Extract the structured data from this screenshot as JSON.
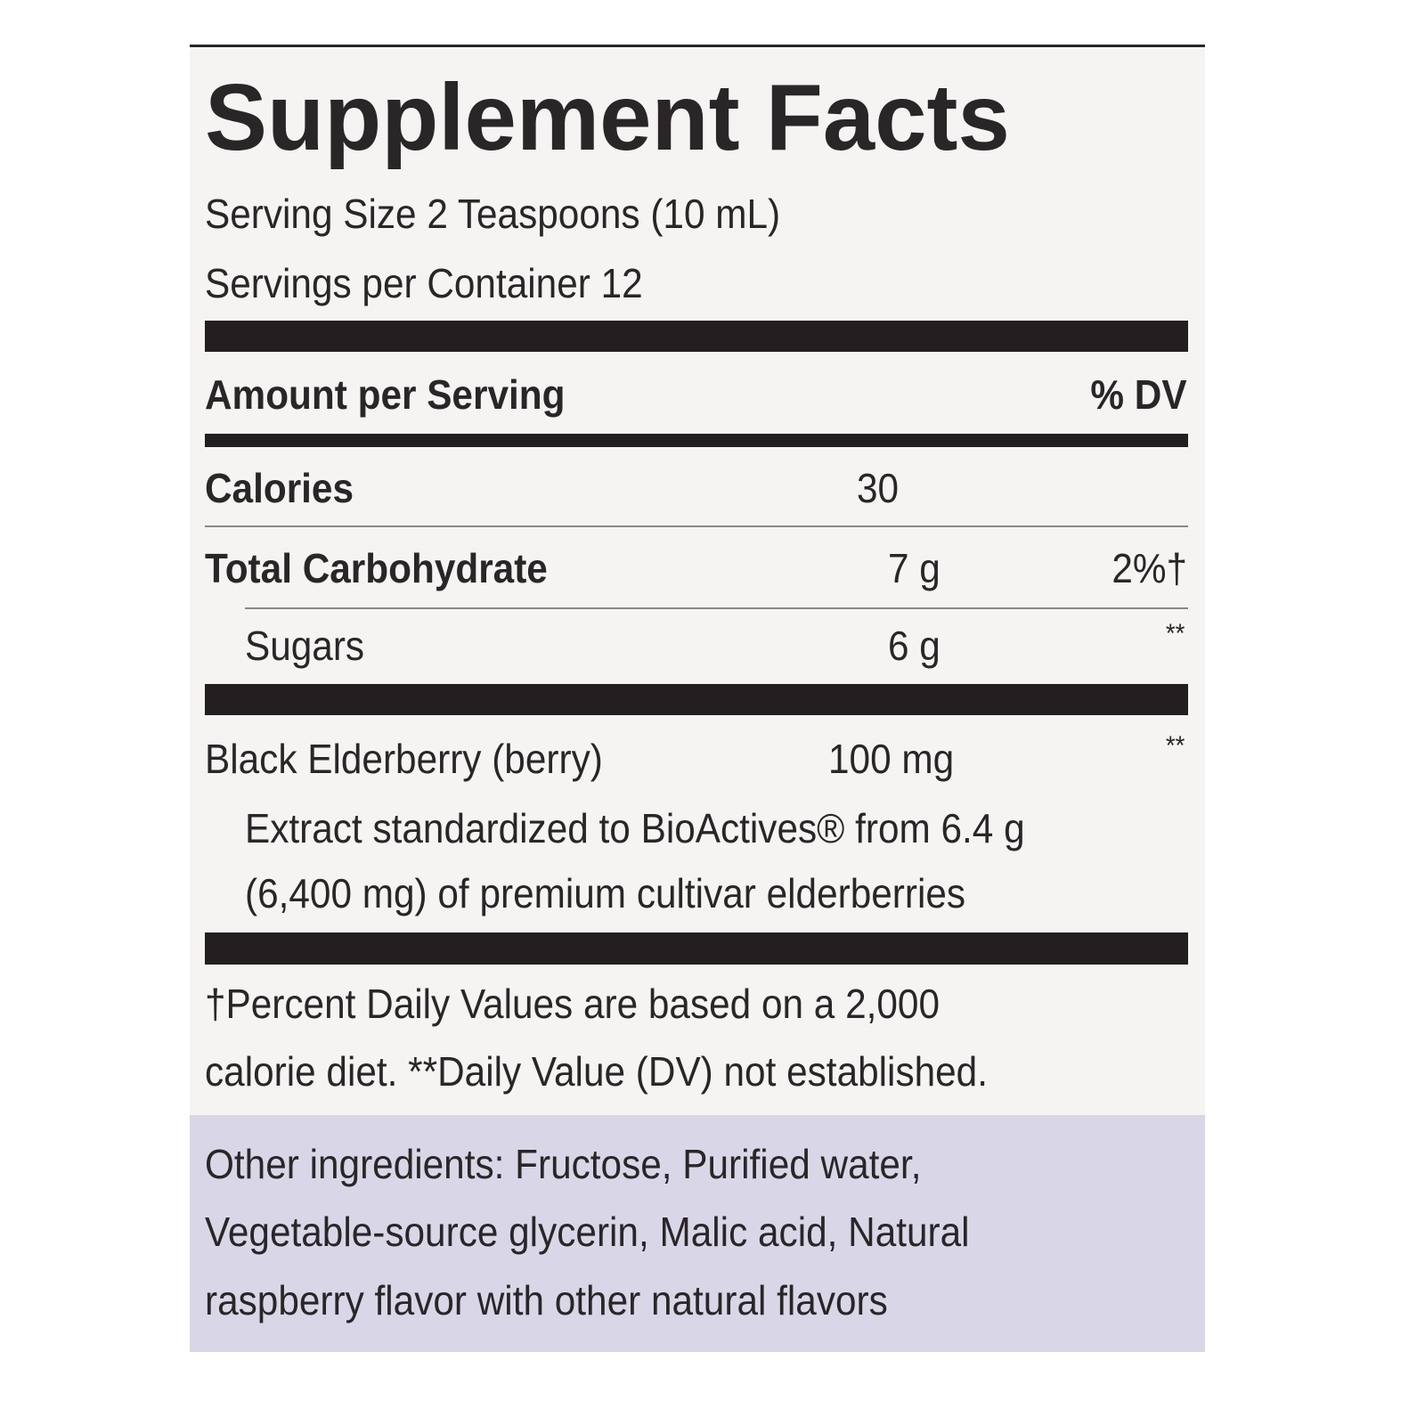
{
  "title": "Supplement Facts",
  "serving_size": "Serving Size 2 Teaspoons (10 mL)",
  "servings_per_container": "Servings per Container 12",
  "header": {
    "left": "Amount per Serving",
    "right": "% DV"
  },
  "rows": [
    {
      "name": "Calories",
      "amount": "30"
    },
    {
      "name": "Total Carbohydrate",
      "amount": "7 g",
      "dv": "2%†"
    },
    {
      "name": "Sugars",
      "amount": "6 g",
      "dv": "**"
    },
    {
      "name": "Black Elderberry (berry)",
      "amount": "100 mg",
      "dv": "**",
      "description": [
        "Extract standardized to BioActives® from 6.4 g",
        "(6,400 mg) of premium cultivar elderberries"
      ]
    }
  ],
  "footnote": [
    "†Percent Daily Values are based on a 2,000",
    "calorie diet. **Daily Value (DV) not established."
  ],
  "other_ingredients": [
    "Other ingredients: Fructose, Purified water,",
    "Vegetable-source glycerin, Malic acid, Natural",
    "raspberry flavor with other natural flavors"
  ]
}
